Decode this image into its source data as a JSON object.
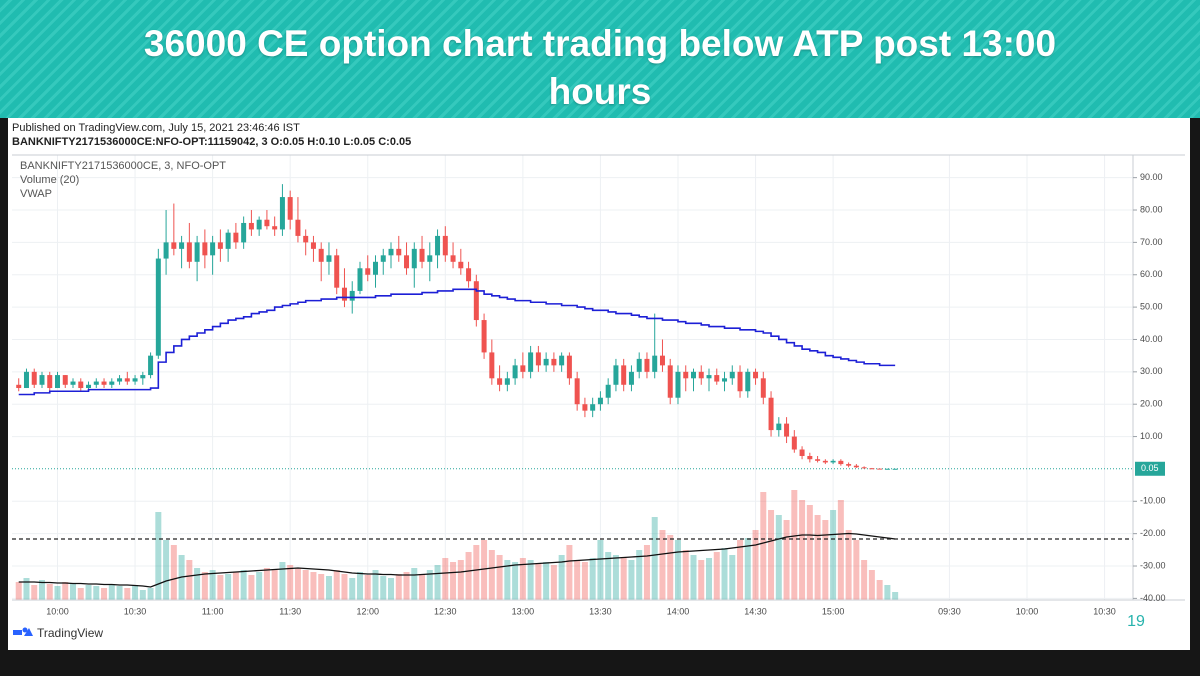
{
  "slide": {
    "title": "36000 CE option chart trading below ATP post 13:00 hours",
    "page_number": "19"
  },
  "chart_data": {
    "type": "candlestick",
    "published": "Published on TradingView.com, July 15, 2021 23:46:46 IST",
    "symbol_line": "BANKNIFTY2171536000CE:NFO-OPT:11159042, 3 O:0.05 H:0.10 L:0.05 C:0.05",
    "legend": [
      "BANKNIFTY2171536000CE, 3, NFO-OPT",
      "Volume (20)",
      "VWAP"
    ],
    "logo_text": "TradingView",
    "last_price": {
      "value": 0.05,
      "label": "0.05"
    },
    "up_color": "#26a69a",
    "down_color": "#ef5350",
    "vwap_color": "#1c1fd6",
    "volume_ma_color": "#111111",
    "last_price_color": "#26a69a",
    "grid": true,
    "xlim": [
      27.4,
      461
    ],
    "xticks": [
      {
        "value": 45,
        "label": "10:00"
      },
      {
        "value": 75,
        "label": "10:30"
      },
      {
        "value": 105,
        "label": "11:00"
      },
      {
        "value": 135,
        "label": "11:30"
      },
      {
        "value": 165,
        "label": "12:00"
      },
      {
        "value": 195,
        "label": "12:30"
      },
      {
        "value": 225,
        "label": "13:00"
      },
      {
        "value": 255,
        "label": "13:30"
      },
      {
        "value": 285,
        "label": "14:00"
      },
      {
        "value": 315,
        "label": "14:30"
      },
      {
        "value": 345,
        "label": "15:00"
      },
      {
        "value": 390,
        "label": "09:30"
      },
      {
        "value": 420,
        "label": "10:00"
      },
      {
        "value": 450,
        "label": "10:30"
      }
    ],
    "ylim": [
      -40.5,
      97
    ],
    "yticks": [
      {
        "value": 90,
        "label": "90.00"
      },
      {
        "value": 80,
        "label": "80.00"
      },
      {
        "value": 70,
        "label": "70.00"
      },
      {
        "value": 60,
        "label": "60.00"
      },
      {
        "value": 50,
        "label": "50.00"
      },
      {
        "value": 40,
        "label": "40.00"
      },
      {
        "value": 30,
        "label": "30.00"
      },
      {
        "value": 20,
        "label": "20.00"
      },
      {
        "value": 10,
        "label": "10.00"
      },
      {
        "value": -10,
        "label": "-10.00"
      },
      {
        "value": -20,
        "label": "-20.00"
      },
      {
        "value": -30,
        "label": "-30.00"
      },
      {
        "value": -40,
        "label": "-40.00"
      }
    ],
    "volume_lim": [
      0,
      120
    ],
    "volume_dashed_level": 61,
    "x": [
      30,
      33,
      36,
      39,
      42,
      45,
      48,
      51,
      54,
      57,
      60,
      63,
      66,
      69,
      72,
      75,
      78,
      81,
      84,
      87,
      90,
      93,
      96,
      99,
      102,
      105,
      108,
      111,
      114,
      117,
      120,
      123,
      126,
      129,
      132,
      135,
      138,
      141,
      144,
      147,
      150,
      153,
      156,
      159,
      162,
      165,
      168,
      171,
      174,
      177,
      180,
      183,
      186,
      189,
      192,
      195,
      198,
      201,
      204,
      207,
      210,
      213,
      216,
      219,
      222,
      225,
      228,
      231,
      234,
      237,
      240,
      243,
      246,
      249,
      252,
      255,
      258,
      261,
      264,
      267,
      270,
      273,
      276,
      279,
      282,
      285,
      288,
      291,
      294,
      297,
      300,
      303,
      306,
      309,
      312,
      315,
      318,
      321,
      324,
      327,
      330,
      333,
      336,
      339,
      342,
      345,
      348,
      351,
      354,
      357,
      360,
      363,
      366,
      369
    ],
    "open": [
      26,
      25,
      30,
      26,
      29,
      25,
      29,
      26,
      27,
      25,
      26,
      27,
      26,
      27,
      28,
      27,
      28,
      29,
      35,
      65,
      70,
      68,
      70,
      64,
      70,
      66,
      70,
      68,
      73,
      70,
      76,
      74,
      77,
      75,
      74,
      84,
      77,
      72,
      70,
      68,
      64,
      66,
      56,
      52,
      55,
      62,
      60,
      64,
      66,
      68,
      66,
      62,
      68,
      64,
      66,
      72,
      66,
      64,
      62,
      58,
      46,
      36,
      28,
      26,
      28,
      32,
      30,
      36,
      32,
      34,
      32,
      35,
      28,
      20,
      18,
      20,
      22,
      26,
      32,
      26,
      30,
      34,
      30,
      35,
      32,
      22,
      30,
      28,
      30,
      28,
      29,
      27,
      28,
      30,
      24,
      30,
      28,
      22,
      12,
      14,
      10,
      6,
      4,
      3,
      2.5,
      2,
      2.5,
      1.5,
      1,
      0.5,
      0.2,
      0.1,
      0.05,
      0.05
    ],
    "high": [
      28,
      31,
      31,
      30,
      30,
      30,
      29,
      28,
      28,
      27,
      28,
      28,
      28,
      29,
      30,
      29,
      30,
      36,
      68,
      80,
      82,
      72,
      76,
      72,
      74,
      72,
      74,
      74,
      76,
      78,
      80,
      78,
      80,
      78,
      88,
      86,
      84,
      74,
      72,
      70,
      70,
      68,
      62,
      58,
      64,
      66,
      66,
      68,
      70,
      72,
      70,
      70,
      72,
      70,
      74,
      75,
      70,
      68,
      64,
      60,
      48,
      40,
      32,
      30,
      34,
      36,
      38,
      38,
      36,
      36,
      36,
      36,
      30,
      22,
      22,
      24,
      28,
      34,
      34,
      32,
      36,
      36,
      48,
      40,
      34,
      32,
      32,
      31,
      32,
      31,
      31,
      30,
      32,
      32,
      31,
      31,
      30,
      24,
      16,
      16,
      12,
      7,
      5,
      4,
      3,
      3,
      3,
      2,
      1.5,
      0.8,
      0.3,
      0.15,
      0.1,
      0.05
    ],
    "low": [
      24,
      25,
      25,
      25,
      24,
      25,
      25,
      25,
      24,
      24,
      25,
      25,
      25,
      26,
      26,
      26,
      26,
      28,
      34,
      60,
      66,
      62,
      62,
      58,
      62,
      60,
      64,
      64,
      68,
      68,
      72,
      72,
      74,
      72,
      72,
      74,
      70,
      66,
      64,
      58,
      60,
      54,
      50,
      48,
      54,
      58,
      56,
      60,
      62,
      64,
      60,
      56,
      62,
      58,
      62,
      64,
      62,
      60,
      56,
      44,
      34,
      26,
      24,
      24,
      26,
      28,
      28,
      30,
      30,
      30,
      30,
      26,
      18,
      16,
      16,
      18,
      20,
      24,
      24,
      24,
      28,
      28,
      28,
      30,
      20,
      20,
      24,
      24,
      26,
      24,
      26,
      24,
      26,
      22,
      22,
      26,
      20,
      10,
      10,
      8,
      5,
      3,
      2,
      2,
      1.5,
      1.5,
      1,
      0.5,
      0.3,
      0.05,
      0.05,
      0.05,
      0.05,
      0.05
    ],
    "close": [
      25,
      30,
      26,
      29,
      25,
      29,
      26,
      27,
      25,
      26,
      27,
      26,
      27,
      28,
      27,
      28,
      29,
      35,
      65,
      70,
      68,
      70,
      64,
      70,
      66,
      70,
      68,
      73,
      70,
      76,
      74,
      77,
      75,
      74,
      84,
      77,
      72,
      70,
      68,
      64,
      66,
      56,
      52,
      55,
      62,
      60,
      64,
      66,
      68,
      66,
      62,
      68,
      64,
      66,
      72,
      66,
      64,
      62,
      58,
      46,
      36,
      28,
      26,
      28,
      32,
      30,
      36,
      32,
      34,
      32,
      35,
      28,
      20,
      18,
      20,
      22,
      26,
      32,
      26,
      30,
      34,
      30,
      35,
      32,
      22,
      30,
      28,
      30,
      28,
      29,
      27,
      28,
      30,
      24,
      30,
      28,
      22,
      12,
      14,
      10,
      6,
      4,
      3,
      2.5,
      2,
      2.5,
      1.5,
      1,
      0.5,
      0.2,
      0.1,
      0.05,
      0.05,
      0.05
    ],
    "vwap": [
      23,
      23,
      23.5,
      23.5,
      24,
      24,
      24,
      24,
      24,
      24.5,
      24.5,
      24.5,
      24.5,
      24.5,
      24.5,
      24.5,
      24.5,
      25,
      33,
      36,
      38,
      40,
      41,
      42,
      43,
      44,
      45,
      46,
      46.5,
      47,
      48,
      48.5,
      49,
      50,
      50.5,
      51,
      51.5,
      52,
      52,
      52.5,
      52.5,
      53,
      53,
      53,
      53,
      53,
      53.5,
      53.5,
      54,
      54,
      54,
      54,
      54.5,
      54.5,
      55,
      55,
      55.5,
      55.5,
      55.5,
      55,
      54,
      53.5,
      53,
      52.5,
      52,
      52,
      51.5,
      51.5,
      51,
      51,
      50.5,
      50.5,
      50,
      49.5,
      49,
      49,
      48.5,
      48,
      48,
      47.5,
      47,
      46.5,
      46.5,
      46,
      46,
      45.5,
      45,
      45,
      44.5,
      44,
      44,
      43.5,
      43.5,
      43,
      43,
      42.5,
      42,
      41,
      40,
      39,
      38,
      37,
      36.5,
      36,
      35,
      34.5,
      34,
      33.5,
      33,
      32.5,
      32.5,
      32,
      32,
      32
    ],
    "volume": [
      18,
      22,
      15,
      20,
      16,
      14,
      18,
      16,
      12,
      15,
      14,
      12,
      16,
      14,
      12,
      15,
      10,
      12,
      88,
      60,
      55,
      45,
      40,
      32,
      28,
      30,
      25,
      26,
      28,
      30,
      25,
      28,
      32,
      30,
      38,
      35,
      32,
      30,
      28,
      26,
      24,
      30,
      26,
      22,
      28,
      25,
      30,
      24,
      22,
      26,
      28,
      32,
      26,
      30,
      35,
      42,
      38,
      40,
      48,
      55,
      60,
      50,
      45,
      40,
      38,
      42,
      40,
      36,
      38,
      35,
      45,
      55,
      40,
      38,
      42,
      60,
      48,
      45,
      42,
      40,
      50,
      55,
      83,
      70,
      65,
      60,
      50,
      45,
      40,
      42,
      48,
      52,
      45,
      60,
      62,
      70,
      108,
      90,
      85,
      80,
      110,
      100,
      95,
      85,
      80,
      90,
      100,
      70,
      60,
      40,
      30,
      20,
      15,
      8
    ],
    "volume_ma": [
      18,
      18,
      18,
      17.5,
      17.5,
      17,
      17,
      16.5,
      16.5,
      16,
      16,
      15.5,
      15.5,
      15,
      15,
      14.5,
      14,
      13,
      16,
      19,
      21,
      23,
      24,
      25,
      26,
      26.5,
      27,
      27.5,
      28,
      28.5,
      29,
      29.5,
      30,
      30.5,
      31,
      31.5,
      32,
      31.5,
      31,
      30.5,
      30,
      29,
      28,
      27,
      26.5,
      26,
      26,
      25.5,
      25.5,
      25,
      25,
      25,
      25.5,
      26,
      26.5,
      27,
      27.5,
      28,
      29,
      30,
      31,
      32,
      33,
      34,
      35,
      35.5,
      36,
      36.5,
      37,
      37.5,
      38,
      39,
      39.5,
      40,
      40.5,
      41,
      41.5,
      42,
      42.5,
      43,
      43.5,
      44,
      45,
      46,
      47,
      48,
      48.5,
      49,
      49.5,
      50,
      50.5,
      51,
      52,
      53,
      54,
      55,
      57,
      59,
      61,
      63,
      64,
      65,
      65,
      64.5,
      65,
      65.5,
      66,
      66.5,
      66,
      65,
      64,
      63,
      62,
      61
    ]
  }
}
